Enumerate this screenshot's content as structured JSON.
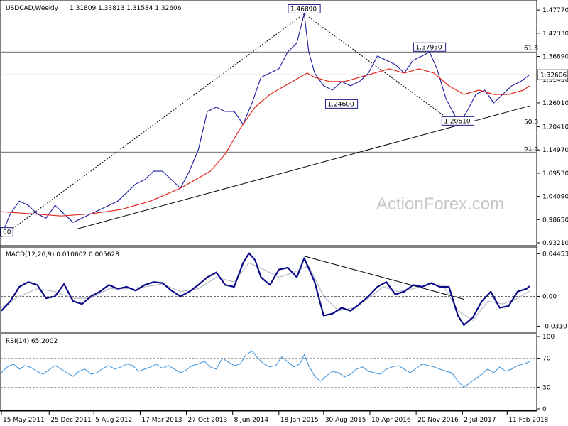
{
  "chart_data": {
    "type": "line",
    "panels": {
      "price": {
        "title": "USDCAD,Weekly",
        "ohlc_label": "1.31809 1.33813 1.31584 1.32606",
        "last_price_label": "1.32606",
        "ylim": [
          0.9321,
          1.4946
        ],
        "y_ticks": [
          "1.47770",
          "1.42330",
          "1.36890",
          "1.31450",
          "1.26010",
          "1.20410",
          "1.14970",
          "1.09530",
          "1.04090",
          "0.98650",
          "0.93210"
        ],
        "horizontal_lines": [
          {
            "value": 1.3793,
            "label": "61.8"
          },
          {
            "value": 1.2061,
            "label": "50.0"
          },
          {
            "value": 1.1447,
            "label": "61.8"
          }
        ],
        "last_price_line": 1.32606,
        "annotations": [
          {
            "text": "1.46890",
            "x": 203,
            "y": 1.4689
          },
          {
            "text": "1.37930",
            "x": 287,
            "y": 1.3793
          },
          {
            "text": "1.24600",
            "x": 228,
            "y": 1.246
          },
          {
            "text": "1.20610",
            "x": 306,
            "y": 1.2061
          },
          {
            "text": "60",
            "x": 0,
            "y": 0.946
          }
        ],
        "trendlines": [
          {
            "style": "dotted",
            "points": [
              [
                0,
                0.946
              ],
              [
                203,
                1.4689
              ]
            ]
          },
          {
            "style": "dotted",
            "points": [
              [
                203,
                1.4689
              ],
              [
                306,
                1.2061
              ]
            ]
          },
          {
            "style": "solid",
            "points": [
              [
                51,
                0.965
              ],
              [
                354,
                1.253
              ]
            ]
          }
        ],
        "series": [
          {
            "name": "price",
            "x": [
              0,
              6,
              12,
              18,
              24,
              30,
              36,
              42,
              48,
              54,
              60,
              66,
              72,
              78,
              84,
              90,
              96,
              102,
              108,
              114,
              120,
              126,
              132,
              138,
              144,
              150,
              156,
              162,
              168,
              174,
              180,
              186,
              192,
              198,
              203,
              206,
              210,
              216,
              222,
              228,
              234,
              240,
              246,
              252,
              258,
              264,
              270,
              276,
              282,
              287,
              292,
              298,
              304,
              306,
              312,
              318,
              324,
              330,
              336,
              342,
              348,
              354
            ],
            "values": [
              0.95,
              1.0,
              1.03,
              1.02,
              1.0,
              0.99,
              1.02,
              1.0,
              0.98,
              0.99,
              1.0,
              1.01,
              1.02,
              1.03,
              1.05,
              1.07,
              1.08,
              1.1,
              1.1,
              1.08,
              1.06,
              1.1,
              1.15,
              1.24,
              1.25,
              1.24,
              1.24,
              1.21,
              1.26,
              1.32,
              1.33,
              1.34,
              1.38,
              1.4,
              1.4689,
              1.38,
              1.33,
              1.3,
              1.29,
              1.31,
              1.3,
              1.31,
              1.33,
              1.37,
              1.36,
              1.35,
              1.33,
              1.36,
              1.37,
              1.3793,
              1.34,
              1.27,
              1.23,
              1.2061,
              1.24,
              1.28,
              1.29,
              1.26,
              1.28,
              1.3,
              1.31,
              1.32606
            ]
          },
          {
            "name": "ma",
            "x": [
              0,
              20,
              40,
              60,
              80,
              100,
              120,
              140,
              150,
              160,
              170,
              180,
              190,
              200,
              205,
              210,
              220,
              230,
              240,
              250,
              260,
              270,
              280,
              290,
              300,
              310,
              320,
              330,
              340,
              350,
              354
            ],
            "values": [
              1.005,
              1.0,
              0.995,
              1.0,
              1.01,
              1.03,
              1.06,
              1.1,
              1.14,
              1.2,
              1.25,
              1.28,
              1.3,
              1.32,
              1.33,
              1.32,
              1.31,
              1.31,
              1.32,
              1.33,
              1.34,
              1.33,
              1.34,
              1.33,
              1.3,
              1.28,
              1.29,
              1.28,
              1.28,
              1.29,
              1.3
            ]
          }
        ]
      },
      "macd": {
        "title": "MACD(12,26,9) 0.010602 0.005628",
        "ylim": [
          -0.036,
          0.05
        ],
        "y_ticks": [
          "0.044534",
          "0.00",
          "-0.031072"
        ],
        "zero_line": 0.0,
        "trendlines": [
          {
            "style": "solid",
            "points": [
              [
                203,
                0.042
              ],
              [
                310,
                -0.003
              ]
            ]
          }
        ],
        "series": [
          {
            "name": "macd",
            "x": [
              0,
              6,
              12,
              18,
              24,
              30,
              36,
              42,
              48,
              54,
              60,
              66,
              72,
              78,
              84,
              90,
              96,
              102,
              108,
              114,
              120,
              126,
              132,
              138,
              144,
              150,
              156,
              162,
              166,
              170,
              174,
              180,
              186,
              192,
              198,
              203,
              210,
              216,
              222,
              228,
              234,
              240,
              246,
              252,
              258,
              264,
              270,
              276,
              282,
              288,
              294,
              300,
              304,
              306,
              310,
              316,
              322,
              328,
              334,
              340,
              346,
              352,
              354
            ],
            "values": [
              -0.015,
              -0.005,
              0.01,
              0.015,
              0.012,
              -0.002,
              0.0,
              0.013,
              -0.005,
              -0.008,
              0.0,
              0.005,
              0.012,
              0.008,
              0.01,
              0.006,
              0.012,
              0.015,
              0.014,
              0.006,
              0.0,
              0.005,
              0.012,
              0.02,
              0.025,
              0.012,
              0.01,
              0.035,
              0.045,
              0.038,
              0.02,
              0.012,
              0.028,
              0.03,
              0.02,
              0.04,
              0.015,
              -0.02,
              -0.018,
              -0.012,
              -0.015,
              -0.008,
              0.0,
              0.01,
              0.015,
              0.002,
              0.005,
              0.012,
              0.01,
              0.014,
              0.01,
              0.01,
              -0.01,
              -0.02,
              -0.03,
              -0.022,
              -0.005,
              0.005,
              -0.012,
              -0.01,
              0.005,
              0.008,
              0.010602
            ]
          },
          {
            "name": "signal",
            "x": [
              0,
              12,
              24,
              36,
              48,
              60,
              72,
              84,
              96,
              108,
              120,
              132,
              144,
              156,
              166,
              176,
              186,
              196,
              206,
              216,
              226,
              236,
              246,
              256,
              266,
              276,
              286,
              296,
              306,
              316,
              326,
              336,
              346,
              354
            ],
            "values": [
              -0.012,
              0.0,
              0.008,
              0.005,
              -0.002,
              -0.002,
              0.008,
              0.008,
              0.01,
              0.013,
              0.005,
              0.008,
              0.02,
              0.015,
              0.035,
              0.028,
              0.02,
              0.025,
              0.032,
              0.0,
              -0.015,
              -0.012,
              -0.002,
              0.01,
              0.005,
              0.008,
              0.012,
              0.012,
              -0.015,
              -0.025,
              -0.005,
              -0.008,
              -0.002,
              0.005628
            ]
          }
        ]
      },
      "rsi": {
        "title": "RSI(14) 65.2002",
        "ylim": [
          0,
          100
        ],
        "y_ticks": [
          "100",
          "70",
          "30",
          "0"
        ],
        "levels": [
          70,
          30
        ],
        "series": [
          {
            "name": "rsi",
            "x": [
              0,
              4,
              8,
              12,
              16,
              20,
              24,
              28,
              32,
              36,
              40,
              44,
              48,
              52,
              56,
              60,
              64,
              68,
              72,
              76,
              80,
              84,
              88,
              92,
              96,
              100,
              104,
              108,
              112,
              116,
              120,
              124,
              128,
              132,
              136,
              140,
              144,
              148,
              152,
              156,
              160,
              164,
              168,
              172,
              176,
              180,
              184,
              188,
              192,
              196,
              200,
              203,
              206,
              210,
              214,
              218,
              222,
              226,
              230,
              234,
              238,
              242,
              246,
              250,
              254,
              258,
              262,
              266,
              270,
              274,
              278,
              282,
              286,
              290,
              294,
              298,
              302,
              306,
              310,
              314,
              318,
              322,
              326,
              330,
              334,
              338,
              342,
              346,
              350,
              354
            ],
            "values": [
              50,
              58,
              62,
              55,
              60,
              57,
              52,
              48,
              54,
              60,
              55,
              50,
              45,
              52,
              55,
              48,
              50,
              56,
              60,
              55,
              58,
              62,
              60,
              52,
              55,
              58,
              62,
              56,
              60,
              55,
              50,
              54,
              60,
              62,
              66,
              58,
              55,
              70,
              65,
              60,
              62,
              75,
              80,
              70,
              62,
              58,
              60,
              72,
              65,
              58,
              62,
              75,
              60,
              45,
              38,
              46,
              52,
              50,
              44,
              48,
              55,
              58,
              52,
              50,
              48,
              55,
              58,
              60,
              55,
              50,
              56,
              62,
              60,
              58,
              55,
              52,
              50,
              38,
              30,
              36,
              42,
              48,
              55,
              50,
              58,
              52,
              55,
              60,
              62,
              65.2
            ]
          }
        ]
      }
    },
    "x_axis": {
      "tick_labels": [
        "15 May 2011",
        "25 Dec 2011",
        "5 Aug 2012",
        "17 Mar 2013",
        "27 Oct 2013",
        "8 Jun 2014",
        "18 Jan 2015",
        "30 Aug 2015",
        "10 Apr 2016",
        "20 Nov 2016",
        "2 Jul 2017",
        "11 Feb 2018"
      ],
      "tick_index": [
        0,
        32,
        62,
        93,
        124,
        155,
        186,
        216,
        247,
        278,
        309,
        339
      ],
      "max_index": 356
    },
    "colors": {
      "price": "#1a1aa0",
      "ma": "#e0261b",
      "macd": "#0b0b8a",
      "signal": "#b8b8c8",
      "rsi": "#3a8fd8",
      "grid_line": "#3d3d3d",
      "label_border": "#1f1f8a"
    }
  },
  "watermark": "ActionForex.com"
}
